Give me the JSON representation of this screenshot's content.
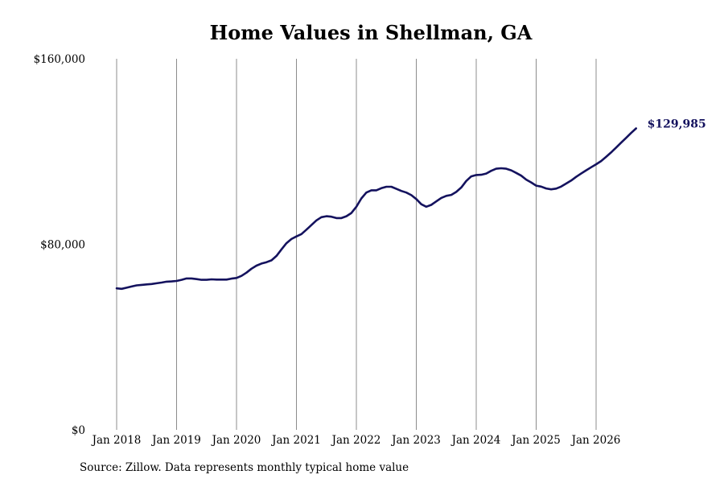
{
  "chart_data": {
    "type": "line",
    "title": "Home Values in Shellman, GA",
    "source": "Source: Zillow. Data represents monthly typical home value",
    "x_start": "2018-01",
    "x_ticks": [
      "Jan 2018",
      "Jan 2019",
      "Jan 2020",
      "Jan 2021",
      "Jan 2022",
      "Jan 2023",
      "Jan 2024",
      "Jan 2025",
      "Jan 2026"
    ],
    "y_ticks": [
      "$0",
      "$80,000",
      "$160,000"
    ],
    "y_tick_values": [
      0,
      80000,
      160000
    ],
    "ylim": [
      0,
      160000
    ],
    "grid": "vertical",
    "line_color": "#14125e",
    "end_label": "$129,985",
    "series": [
      {
        "values": [
          61000,
          60800,
          61300,
          61800,
          62300,
          62500,
          62700,
          62900,
          63200,
          63500,
          63900,
          64000,
          64200,
          64700,
          65300,
          65300,
          65000,
          64700,
          64700,
          64900,
          64800,
          64800,
          64800,
          65200,
          65500,
          66400,
          67800,
          69500,
          70800,
          71700,
          72300,
          73100,
          75000,
          77800,
          80500,
          82300,
          83400,
          84400,
          86300,
          88300,
          90300,
          91700,
          92100,
          91900,
          91300,
          91300,
          92100,
          93500,
          96200,
          99800,
          102300,
          103300,
          103300,
          104200,
          104800,
          104800,
          103900,
          103000,
          102300,
          101200,
          99500,
          97300,
          96200,
          97000,
          98500,
          100000,
          100900,
          101300,
          102600,
          104500,
          107300,
          109300,
          109900,
          110000,
          110500,
          111700,
          112600,
          112800,
          112600,
          111900,
          110800,
          109600,
          107900,
          106700,
          105300,
          104900,
          104100,
          103700,
          104000,
          104900,
          106200,
          107500,
          109100,
          110500,
          111900,
          113200,
          114500,
          115900,
          117700,
          119600,
          121700,
          123800,
          125900,
          128000,
          129985
        ]
      }
    ]
  }
}
